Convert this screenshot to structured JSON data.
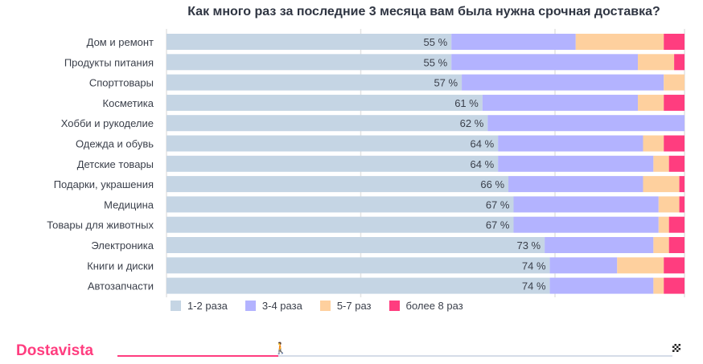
{
  "chart_data": {
    "type": "bar",
    "stacked": true,
    "orientation": "horizontal",
    "title": "Как много раз за последние 3 месяца вам была нужна срочная доставка?",
    "categories": [
      "Дом и ремонт",
      "Продукты питания",
      "Спорттовары",
      "Косметика",
      "Хобби и рукоделие",
      "Одежда и обувь",
      "Детские товары",
      "Подарки, украшения",
      "Медицина",
      "Товары для животных",
      "Электроника",
      "Книги и диски",
      "Автозапчасти"
    ],
    "series": [
      {
        "name": "1-2 раза",
        "color": "#c5d5e4",
        "values": [
          55,
          55,
          57,
          61,
          62,
          64,
          64,
          66,
          67,
          67,
          73,
          74,
          74
        ]
      },
      {
        "name": "3-4 раза",
        "color": "#b3b3ff",
        "values": [
          24,
          36,
          39,
          30,
          38,
          28,
          30,
          26,
          28,
          28,
          21,
          13,
          20
        ]
      },
      {
        "name": "5-7 раз",
        "color": "#fed09e",
        "values": [
          17,
          7,
          4,
          5,
          0,
          4,
          3,
          7,
          4,
          2,
          3,
          9,
          2
        ]
      },
      {
        "name": "более 8 раз",
        "color": "#ff3d7f",
        "values": [
          4,
          2,
          0,
          4,
          0,
          4,
          3,
          1,
          1,
          3,
          3,
          4,
          4
        ]
      }
    ],
    "xlim": [
      0,
      100
    ],
    "label_suffix": " %",
    "legend": "bottom-left"
  },
  "footer": {
    "brand": "Dostavista",
    "progress": 0.29
  }
}
